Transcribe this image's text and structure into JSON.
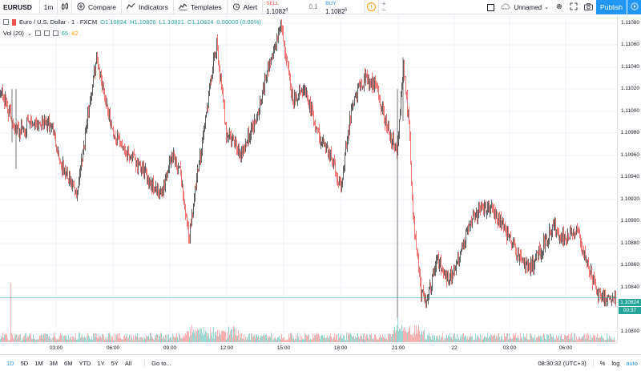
{
  "toolbar": {
    "symbol": "EURUSD",
    "interval": "1m",
    "compare_label": "Compare",
    "indicators_label": "Indicators",
    "templates_label": "Templates",
    "alert_label": "Alert",
    "sell_label": "SELL",
    "sell_price": "1.1082",
    "sell_sup": "4",
    "spread": "0.1",
    "buy_label": "BUY",
    "buy_price": "1.1082",
    "buy_sup": "5",
    "layout_name": "Unnamed",
    "publish_label": "Publish"
  },
  "legend": {
    "title": "Euro / U.S. Dollar · 1 · FXCM",
    "o": "O1.10824",
    "h": "H1.10826",
    "l": "L1.10821",
    "c": "C1.10824",
    "chg": "0.00000 (0.00%)",
    "vol_label": "Vol (20)",
    "vol_val1": "65",
    "vol_val2": "42"
  },
  "price_axis": {
    "ticks": [
      "1.11080",
      "1.11060",
      "1.11040",
      "1.11020",
      "1.11000",
      "1.10980",
      "1.10960",
      "1.10940",
      "1.10920",
      "1.10900",
      "1.10880",
      "1.10860",
      "1.10840",
      "1.10800"
    ],
    "last_price": "1.10824",
    "countdown": "00:37"
  },
  "time_axis": {
    "ticks": [
      "03:00",
      "06:00",
      "09:00",
      "12:00",
      "15:00",
      "18:00",
      "21:00",
      "22",
      "03:00",
      "06:00"
    ]
  },
  "bottom_bar": {
    "ranges": [
      "1D",
      "5D",
      "1M",
      "3M",
      "6M",
      "YTD",
      "1Y",
      "5Y",
      "All"
    ],
    "goto_label": "Go to...",
    "clock": "08:30:32 (UTC+3)",
    "percent": "%",
    "log": "log",
    "auto": "auto"
  },
  "colors": {
    "up": "#26a69a",
    "down": "#ef5350",
    "accent": "#2196f3",
    "grid": "#f0f3fa"
  },
  "chart_data": {
    "type": "candlestick",
    "symbol": "EURUSD",
    "interval": "1m",
    "ylim": [
      1.10795,
      1.11085
    ],
    "keypoints": [
      [
        0,
        1.1102
      ],
      [
        20,
        1.1098
      ],
      [
        45,
        1.1099
      ],
      [
        65,
        1.10985
      ],
      [
        75,
        1.1095
      ],
      [
        95,
        1.1092
      ],
      [
        110,
        1.11
      ],
      [
        120,
        1.1105
      ],
      [
        140,
        1.1098
      ],
      [
        160,
        1.1096
      ],
      [
        180,
        1.1094
      ],
      [
        200,
        1.1092
      ],
      [
        215,
        1.1096
      ],
      [
        225,
        1.1094
      ],
      [
        235,
        1.1088
      ],
      [
        250,
        1.1096
      ],
      [
        265,
        1.1104
      ],
      [
        270,
        1.1106
      ],
      [
        282,
        1.1098
      ],
      [
        300,
        1.1096
      ],
      [
        318,
        1.1099
      ],
      [
        335,
        1.1104
      ],
      [
        350,
        1.1108
      ],
      [
        365,
        1.1101
      ],
      [
        380,
        1.1102
      ],
      [
        395,
        1.1098
      ],
      [
        410,
        1.1096
      ],
      [
        425,
        1.1093
      ],
      [
        440,
        1.1101
      ],
      [
        455,
        1.1103
      ],
      [
        470,
        1.1102
      ],
      [
        480,
        1.1099
      ],
      [
        495,
        1.1096
      ],
      [
        503,
        1.1104
      ],
      [
        510,
        1.1099
      ],
      [
        515,
        1.109
      ],
      [
        525,
        1.1083
      ],
      [
        532,
        1.1082
      ],
      [
        545,
        1.1086
      ],
      [
        560,
        1.1084
      ],
      [
        575,
        1.1087
      ],
      [
        590,
        1.109
      ],
      [
        605,
        1.1091
      ],
      [
        620,
        1.109
      ],
      [
        635,
        1.1088
      ],
      [
        650,
        1.1086
      ],
      [
        660,
        1.1085
      ],
      [
        675,
        1.1087
      ],
      [
        690,
        1.1089
      ],
      [
        705,
        1.1088
      ],
      [
        720,
        1.1089
      ],
      [
        730,
        1.1086
      ],
      [
        745,
        1.1083
      ],
      [
        755,
        1.10825
      ],
      [
        768,
        1.10824
      ]
    ]
  }
}
